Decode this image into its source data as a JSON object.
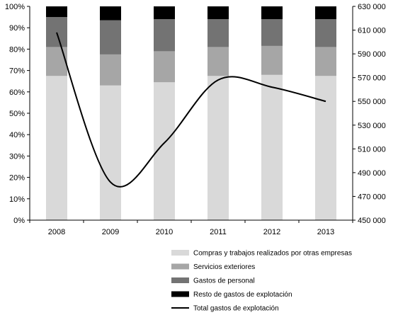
{
  "chart_data": {
    "type": "bar",
    "title": "",
    "xlabel": "",
    "ylabel": "",
    "categories": [
      "2008",
      "2009",
      "2010",
      "2011",
      "2012",
      "2013"
    ],
    "stacked_bars": {
      "ylim": [
        0,
        100
      ],
      "ytick_labels": [
        "0%",
        "10%",
        "20%",
        "30%",
        "40%",
        "50%",
        "60%",
        "70%",
        "80%",
        "90%",
        "100%"
      ],
      "series": [
        {
          "name": "Compras y trabajos realizados por otras empresas",
          "color": "#d9d9d9",
          "values": [
            67.5,
            63,
            64.5,
            67.5,
            68,
            67.5
          ]
        },
        {
          "name": "Servicios exteriores",
          "color": "#a6a6a6",
          "values": [
            13.5,
            14.5,
            14.5,
            13.5,
            13.5,
            13.5
          ]
        },
        {
          "name": "Gastos de personal",
          "color": "#737373",
          "values": [
            14,
            16,
            15,
            13,
            12.5,
            13
          ]
        },
        {
          "name": "Resto de gastos de explotación",
          "color": "#000000",
          "values": [
            5,
            6.5,
            6,
            6,
            6,
            6
          ]
        }
      ]
    },
    "line": {
      "name": "Total gastos de explotación",
      "color": "#000000",
      "values": [
        608000,
        482000,
        515000,
        568000,
        562000,
        550000
      ],
      "y2lim": [
        450000,
        630000
      ],
      "y2tick_labels": [
        "450 000",
        "470 000",
        "490 000",
        "510 000",
        "530 000",
        "550 000",
        "570 000",
        "590 000",
        "610 000",
        "630 000"
      ]
    },
    "grid": false,
    "legend_position": "bottom-right"
  }
}
